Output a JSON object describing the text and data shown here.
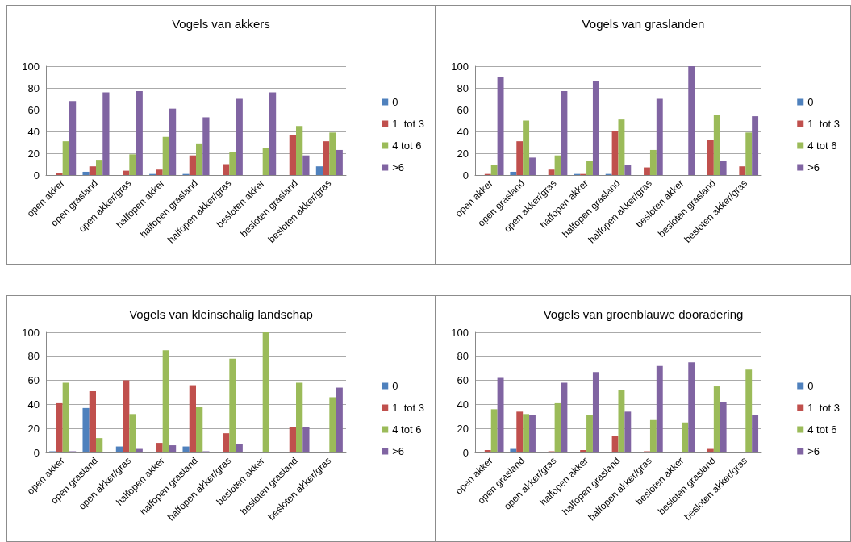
{
  "chart_data": [
    {
      "type": "bar",
      "title": "Vogels van akkers",
      "categories": [
        "open akker",
        "open grasland",
        "open akker/gras",
        "halfopen akker",
        "halfopen grasland",
        "halfopen akker/gras",
        "besloten akker",
        "besloten grasland",
        "besloten akker/gras"
      ],
      "ylim": [
        0,
        100
      ],
      "yticks": [
        0,
        20,
        40,
        60,
        80,
        100
      ],
      "grid": "y",
      "legend": "right",
      "series": [
        {
          "name": "0",
          "color": "#4f81bd",
          "values": [
            0,
            3,
            0,
            1,
            1,
            0,
            0,
            0,
            8
          ]
        },
        {
          "name": "1  tot 3",
          "color": "#c0504d",
          "values": [
            2,
            8,
            4,
            5,
            18,
            10,
            0,
            37,
            31
          ]
        },
        {
          "name": "4 tot 6",
          "color": "#9bbb59",
          "values": [
            31,
            14,
            19,
            35,
            29,
            21,
            25,
            45,
            39
          ]
        },
        {
          "name": ">6",
          "color": "#8064a2",
          "values": [
            68,
            76,
            77,
            61,
            53,
            70,
            76,
            18,
            23
          ]
        }
      ]
    },
    {
      "type": "bar",
      "title": "Vogels van graslanden",
      "categories": [
        "open akker",
        "open grasland",
        "open akker/gras",
        "halfopen akker",
        "halfopen grasland",
        "halfopen akker/gras",
        "besloten akker",
        "besloten grasland",
        "besloten akker/gras"
      ],
      "ylim": [
        0,
        100
      ],
      "yticks": [
        0,
        20,
        40,
        60,
        80,
        100
      ],
      "grid": "y",
      "legend": "right",
      "series": [
        {
          "name": "0",
          "color": "#4f81bd",
          "values": [
            0,
            3,
            0,
            1,
            1,
            0,
            0,
            0,
            0
          ]
        },
        {
          "name": "1  tot 3",
          "color": "#c0504d",
          "values": [
            1,
            31,
            5,
            1,
            40,
            7,
            0,
            32,
            8
          ]
        },
        {
          "name": "4 tot 6",
          "color": "#9bbb59",
          "values": [
            9,
            50,
            18,
            13,
            51,
            23,
            0,
            55,
            39
          ]
        },
        {
          "name": ">6",
          "color": "#8064a2",
          "values": [
            90,
            16,
            77,
            86,
            9,
            70,
            100,
            13,
            54
          ]
        }
      ]
    },
    {
      "type": "bar",
      "title": "Vogels van kleinschalig landschap",
      "categories": [
        "open akker",
        "open grasland",
        "open akker/gras",
        "halfopen akker",
        "halfopen grasland",
        "halfopen akker/gras",
        "besloten akker",
        "besloten grasland",
        "besloten akker/gras"
      ],
      "ylim": [
        0,
        100
      ],
      "yticks": [
        0,
        20,
        40,
        60,
        80,
        100
      ],
      "grid": "y",
      "legend": "right",
      "series": [
        {
          "name": "0",
          "color": "#4f81bd",
          "values": [
            1,
            37,
            5,
            0,
            5,
            0,
            0,
            0,
            0
          ]
        },
        {
          "name": "1  tot 3",
          "color": "#c0504d",
          "values": [
            41,
            51,
            60,
            8,
            56,
            16,
            0,
            21,
            0
          ]
        },
        {
          "name": "4 tot 6",
          "color": "#9bbb59",
          "values": [
            58,
            12,
            32,
            85,
            38,
            78,
            100,
            58,
            46
          ]
        },
        {
          "name": ">6",
          "color": "#8064a2",
          "values": [
            1,
            0,
            3,
            6,
            1,
            7,
            0,
            21,
            54
          ]
        }
      ]
    },
    {
      "type": "bar",
      "title": "Vogels van groenblauwe dooradering",
      "categories": [
        "open akker",
        "open grasland",
        "open akker/gras",
        "halfopen akker",
        "halfopen grasland",
        "halfopen akker/gras",
        "besloten akker",
        "besloten grasland",
        "besloten akker/gras"
      ],
      "ylim": [
        0,
        100
      ],
      "yticks": [
        0,
        20,
        40,
        60,
        80,
        100
      ],
      "grid": "y",
      "legend": "right",
      "series": [
        {
          "name": "0",
          "color": "#4f81bd",
          "values": [
            0,
            3,
            0,
            0,
            0,
            0,
            0,
            0,
            0
          ]
        },
        {
          "name": "1  tot 3",
          "color": "#c0504d",
          "values": [
            2,
            34,
            1,
            2,
            14,
            1,
            0,
            3,
            0
          ]
        },
        {
          "name": "4 tot 6",
          "color": "#9bbb59",
          "values": [
            36,
            32,
            41,
            31,
            52,
            27,
            25,
            55,
            69
          ]
        },
        {
          "name": ">6",
          "color": "#8064a2",
          "values": [
            62,
            31,
            58,
            67,
            34,
            72,
            75,
            42,
            31
          ]
        }
      ]
    }
  ]
}
